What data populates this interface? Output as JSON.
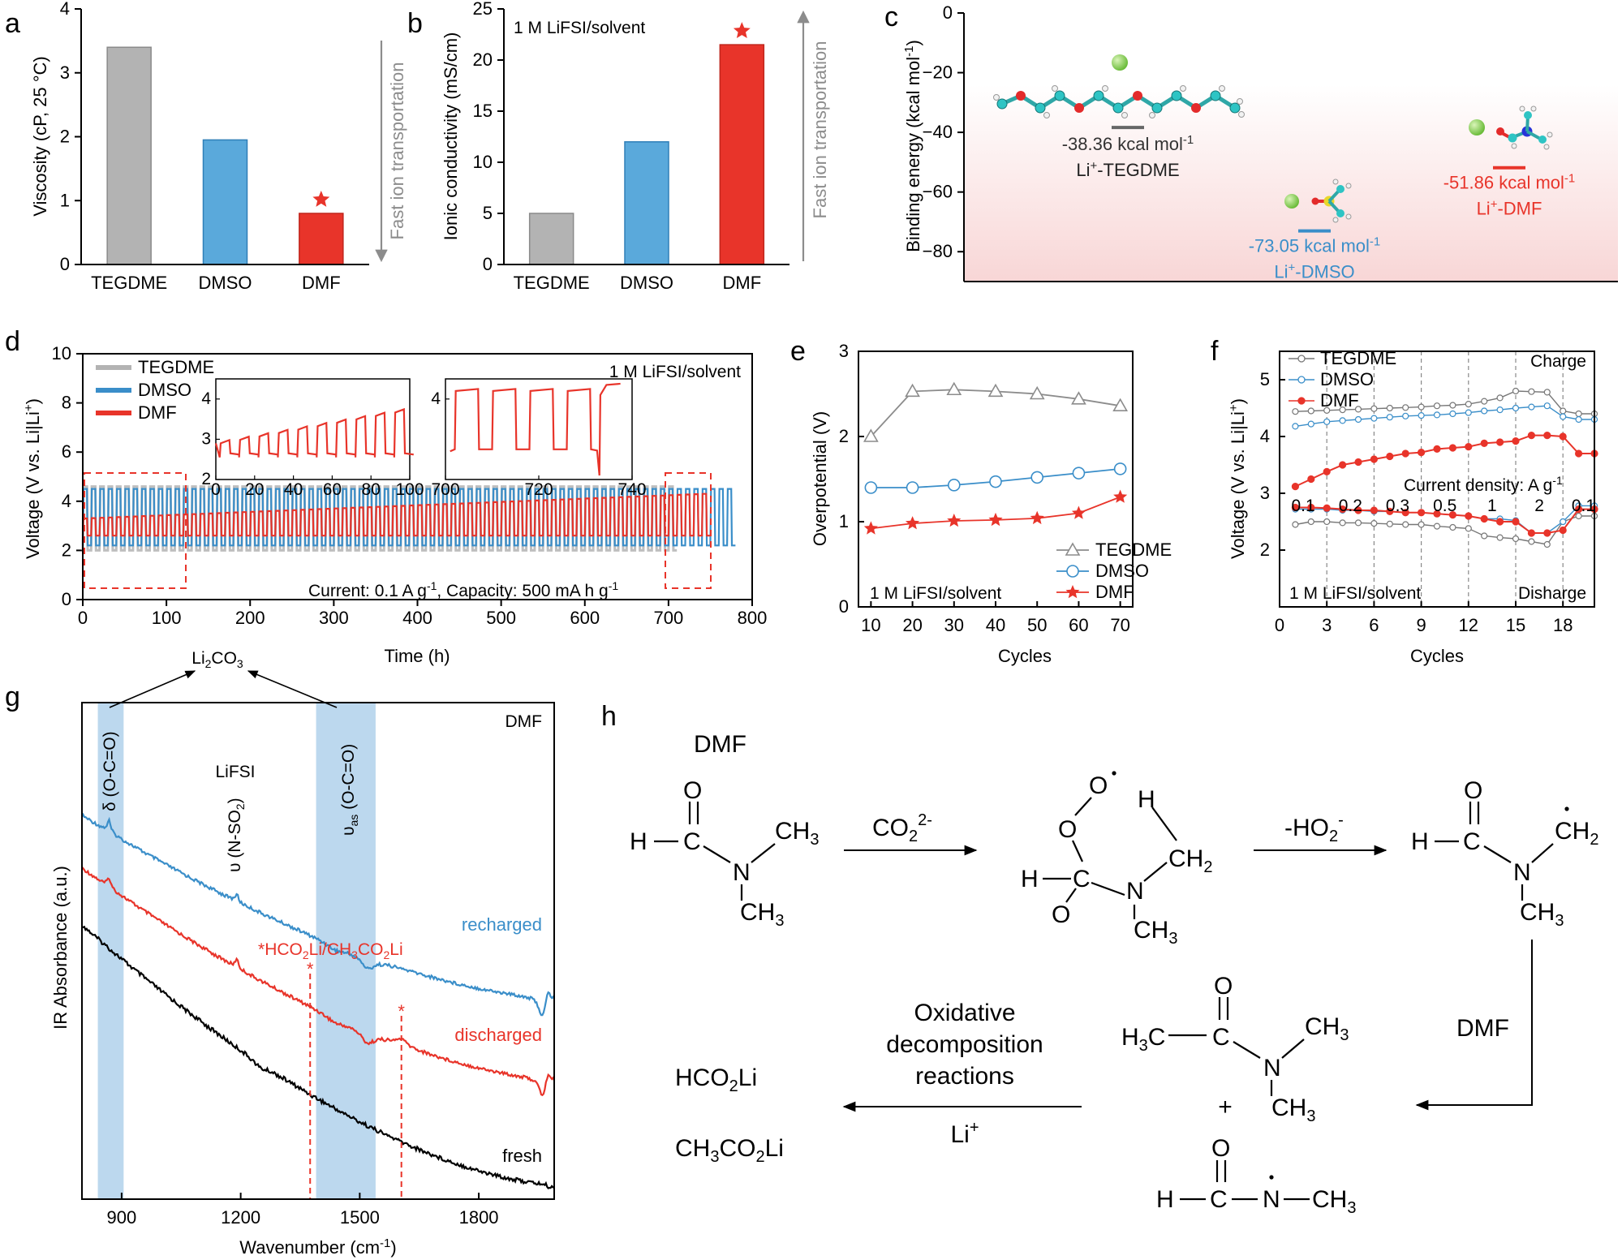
{
  "panels": {
    "a": "a",
    "b": "b",
    "c": "c",
    "d": "d",
    "e": "e",
    "f": "f",
    "g": "g",
    "h": "h"
  },
  "colors": {
    "tegdme": "#b3b3b3",
    "dmso": "#3a8ec9",
    "dmf": "#e8342a",
    "dmso_bar": "#5aa9db",
    "band": "#bcd8ee",
    "star": "#e8342a"
  },
  "chart_data": [
    {
      "id": "a",
      "type": "bar",
      "categories": [
        "TEGDME",
        "DMSO",
        "DMF"
      ],
      "values": [
        3.4,
        1.95,
        0.8
      ],
      "ylabel": "Viscosity (cP, 25 °C)",
      "ylim": [
        0,
        4
      ],
      "yticks": [
        "0",
        "1",
        "2",
        "3",
        "4"
      ],
      "arrow_label": "Fast ion transportation",
      "star_on": "DMF"
    },
    {
      "id": "b",
      "type": "bar",
      "categories": [
        "TEGDME",
        "DMSO",
        "DMF"
      ],
      "values": [
        5.0,
        12.0,
        21.5
      ],
      "ylabel": "Ionic conductivity (mS/cm)",
      "ylim": [
        0,
        25
      ],
      "yticks": [
        "0",
        "5",
        "10",
        "15",
        "20",
        "25"
      ],
      "annotation": "1 M LiFSI/solvent",
      "arrow_label": "Fast ion transportation",
      "star_on": "DMF"
    },
    {
      "id": "c",
      "type": "scatter",
      "ylabel": "Binding energy (kcal mol",
      "ylabel_sup": "-1",
      "ylabel_end": ")",
      "ylim": [
        -90,
        0
      ],
      "yticks": [
        "0",
        "−20",
        "−40",
        "−60",
        "−80"
      ],
      "levels": [
        {
          "name": "TEGDME",
          "value": -38.36,
          "label": "-38.36 kcal mol",
          "complex_main": "Li",
          "complex_rest": "-TEGDME"
        },
        {
          "name": "DMSO",
          "value": -73.05,
          "label": "-73.05  kcal mol",
          "complex_main": "Li",
          "complex_rest": "-DMSO"
        },
        {
          "name": "DMF",
          "value": -51.86,
          "label": "-51.86  kcal mol",
          "complex_main": "Li",
          "complex_rest": "-DMF"
        }
      ],
      "sup_minus_one": "-1",
      "sup_plus": "+"
    },
    {
      "id": "d",
      "type": "line",
      "xlabel": "Time (h)",
      "ylabel": "Voltage (V vs. Li|Li",
      "ylabel_sup": "+",
      "ylabel_end": ")",
      "xlim": [
        0,
        800
      ],
      "ylim": [
        0,
        10
      ],
      "xticks": [
        "0",
        "100",
        "200",
        "300",
        "400",
        "500",
        "600",
        "700",
        "800"
      ],
      "yticks": [
        "0",
        "2",
        "4",
        "6",
        "8",
        "10"
      ],
      "series": [
        {
          "name": "TEGDME",
          "end_time": 700,
          "period": 10,
          "low": 2.0,
          "high": 4.6
        },
        {
          "name": "DMSO",
          "end_time": 770,
          "period": 10,
          "low": 2.2,
          "high": 4.5
        },
        {
          "name": "DMF",
          "end_time": 740,
          "period": 10,
          "low": 2.6,
          "high": 4.3
        }
      ],
      "annotation": "1 M LiFSI/solvent",
      "note": "Current: 0.1 A g",
      "note_mid": ", Capacity: 500 mA h g",
      "note_sup": "-1",
      "insets": [
        {
          "xlim": [
            0,
            100
          ],
          "ylim": [
            2,
            4.5
          ],
          "xticks": [
            "0",
            "20",
            "40",
            "60",
            "80",
            "100"
          ],
          "yticks": [
            "2",
            "3",
            "4"
          ]
        },
        {
          "xlim": [
            700,
            740
          ],
          "ylim": [
            2,
            4.5
          ],
          "xticks": [
            "700",
            "720",
            "740"
          ],
          "yticks": [
            "4"
          ]
        }
      ]
    },
    {
      "id": "e",
      "type": "line",
      "xlabel": "Cycles",
      "ylabel": "Overpotential (V)",
      "x": [
        10,
        20,
        30,
        40,
        50,
        60,
        70
      ],
      "xlim": [
        7,
        73
      ],
      "ylim": [
        0,
        3
      ],
      "xticks": [
        "10",
        "20",
        "30",
        "40",
        "50",
        "60",
        "70"
      ],
      "yticks": [
        "0",
        "1",
        "2",
        "3"
      ],
      "series": [
        {
          "name": "TEGDME",
          "marker": "triangle",
          "values": [
            2.0,
            2.53,
            2.55,
            2.53,
            2.5,
            2.44,
            2.36
          ]
        },
        {
          "name": "DMSO",
          "marker": "circle",
          "values": [
            1.4,
            1.4,
            1.43,
            1.47,
            1.52,
            1.57,
            1.62
          ]
        },
        {
          "name": "DMF",
          "marker": "star",
          "values": [
            0.92,
            0.98,
            1.01,
            1.02,
            1.04,
            1.1,
            1.29
          ]
        }
      ],
      "annotation": "1 M LiFSI/solvent"
    },
    {
      "id": "f",
      "type": "line",
      "xlabel": "Cycles",
      "ylabel": "Voltage (V vs. Li|Li",
      "ylabel_sup": "+",
      "ylabel_end": ")",
      "xlim": [
        0,
        20
      ],
      "ylim": [
        1,
        5.5
      ],
      "xticks": [
        "0",
        "3",
        "6",
        "9",
        "12",
        "15",
        "18"
      ],
      "yticks": [
        "2",
        "3",
        "4",
        "5"
      ],
      "x": [
        1,
        2,
        3,
        4,
        5,
        6,
        7,
        8,
        9,
        10,
        11,
        12,
        13,
        14,
        15,
        16,
        17,
        18,
        19,
        20
      ],
      "series": [
        {
          "name": "TEGDME",
          "charge": [
            4.44,
            4.45,
            4.46,
            4.47,
            4.48,
            4.49,
            4.5,
            4.51,
            4.52,
            4.54,
            4.55,
            4.57,
            4.62,
            4.68,
            4.8,
            4.79,
            4.78,
            4.45,
            4.4,
            4.4
          ],
          "discharge": [
            2.45,
            2.5,
            2.5,
            2.48,
            2.48,
            2.47,
            2.46,
            2.45,
            2.45,
            2.42,
            2.4,
            2.38,
            2.25,
            2.22,
            2.2,
            2.15,
            2.1,
            2.5,
            2.6,
            2.6
          ]
        },
        {
          "name": "DMSO",
          "charge": [
            4.18,
            4.22,
            4.26,
            4.28,
            4.3,
            4.32,
            4.34,
            4.36,
            4.37,
            4.38,
            4.4,
            4.42,
            4.45,
            4.47,
            4.5,
            4.52,
            4.54,
            4.35,
            4.3,
            4.3
          ],
          "discharge": [
            2.72,
            2.72,
            2.72,
            2.7,
            2.7,
            2.68,
            2.68,
            2.66,
            2.66,
            2.64,
            2.62,
            2.6,
            2.55,
            2.55,
            2.52,
            2.3,
            2.3,
            2.5,
            2.78,
            2.78
          ]
        },
        {
          "name": "DMF",
          "charge": [
            3.12,
            3.25,
            3.38,
            3.5,
            3.55,
            3.6,
            3.65,
            3.7,
            3.72,
            3.78,
            3.8,
            3.82,
            3.88,
            3.9,
            3.92,
            4.02,
            4.02,
            4.0,
            3.7,
            3.7
          ],
          "discharge": [
            2.75,
            2.75,
            2.74,
            2.72,
            2.7,
            2.7,
            2.68,
            2.66,
            2.66,
            2.64,
            2.62,
            2.6,
            2.55,
            2.5,
            2.5,
            2.3,
            2.3,
            2.35,
            2.72,
            2.72
          ]
        }
      ],
      "current_density_label": "Current density: A g",
      "current_density_sup": "-1",
      "rates": [
        "0.1",
        "0.2",
        "0.3",
        "0.5",
        "1",
        "2",
        "0.1"
      ],
      "charge_label": "Charge",
      "discharge_label": "Disharge",
      "annotation": "1 M LiFSI/solvent"
    },
    {
      "id": "g",
      "type": "line",
      "xlabel": "Wavenumber (cm",
      "xlabel_sup": "-1",
      "xlabel_end": ")",
      "ylabel": "IR Absorbance (a.u.)",
      "xlim": [
        800,
        1990
      ],
      "xticks": [
        "900",
        "1200",
        "1500",
        "1800"
      ],
      "series": [
        {
          "name": "recharged"
        },
        {
          "name": "discharged"
        },
        {
          "name": "fresh"
        }
      ],
      "solvent": "DMF",
      "bands": [
        {
          "range": [
            840,
            905
          ],
          "label": "δ (O-C=O)"
        },
        {
          "range": [
            1390,
            1540
          ],
          "label": "υas (O-C=O)"
        }
      ],
      "band_label_delta": "δ (O-C=O)",
      "band_label_nu": "υ",
      "band_label_nu_sub": "as",
      "band_label_nu_rest": " (O-C=O)",
      "li2co3": "Li",
      "li2co3_sub": "2",
      "li2co3_rest": "CO",
      "li2co3_sub2": "3",
      "lifsi": "LiFSI",
      "nso2": "υ (N-SO",
      "nso2_sub": "2",
      "nso2_end": ")",
      "formate_star": "*",
      "formate": "HCO",
      "formate_sub": "2",
      "formate_mid": "Li/CH",
      "formate_sub2": "3",
      "formate_mid2": "CO",
      "formate_sub3": "2",
      "formate_end": "Li",
      "marker_positions": [
        1375,
        1605
      ]
    }
  ],
  "scheme": {
    "dmf_title": "DMF",
    "reagent1": "CO",
    "reagent1_sub": "2",
    "reagent1_sup": "2-",
    "reagent2": "-HO",
    "reagent2_sub": "2",
    "reagent2_sup": "-",
    "reagent3": "DMF",
    "oxidative": [
      "Oxidative",
      "decomposition",
      "reactions"
    ],
    "li_plus": "Li",
    "li_plus_sup": "+",
    "plus": "+",
    "products": [
      "HCO",
      "CH"
    ],
    "atoms": {
      "H": "H",
      "C": "C",
      "N": "N",
      "O": "O",
      "CH3": "CH",
      "CH2": "CH",
      "sub2": "2",
      "sub3": "3",
      "H3C": "H",
      "Li": "Li"
    }
  }
}
